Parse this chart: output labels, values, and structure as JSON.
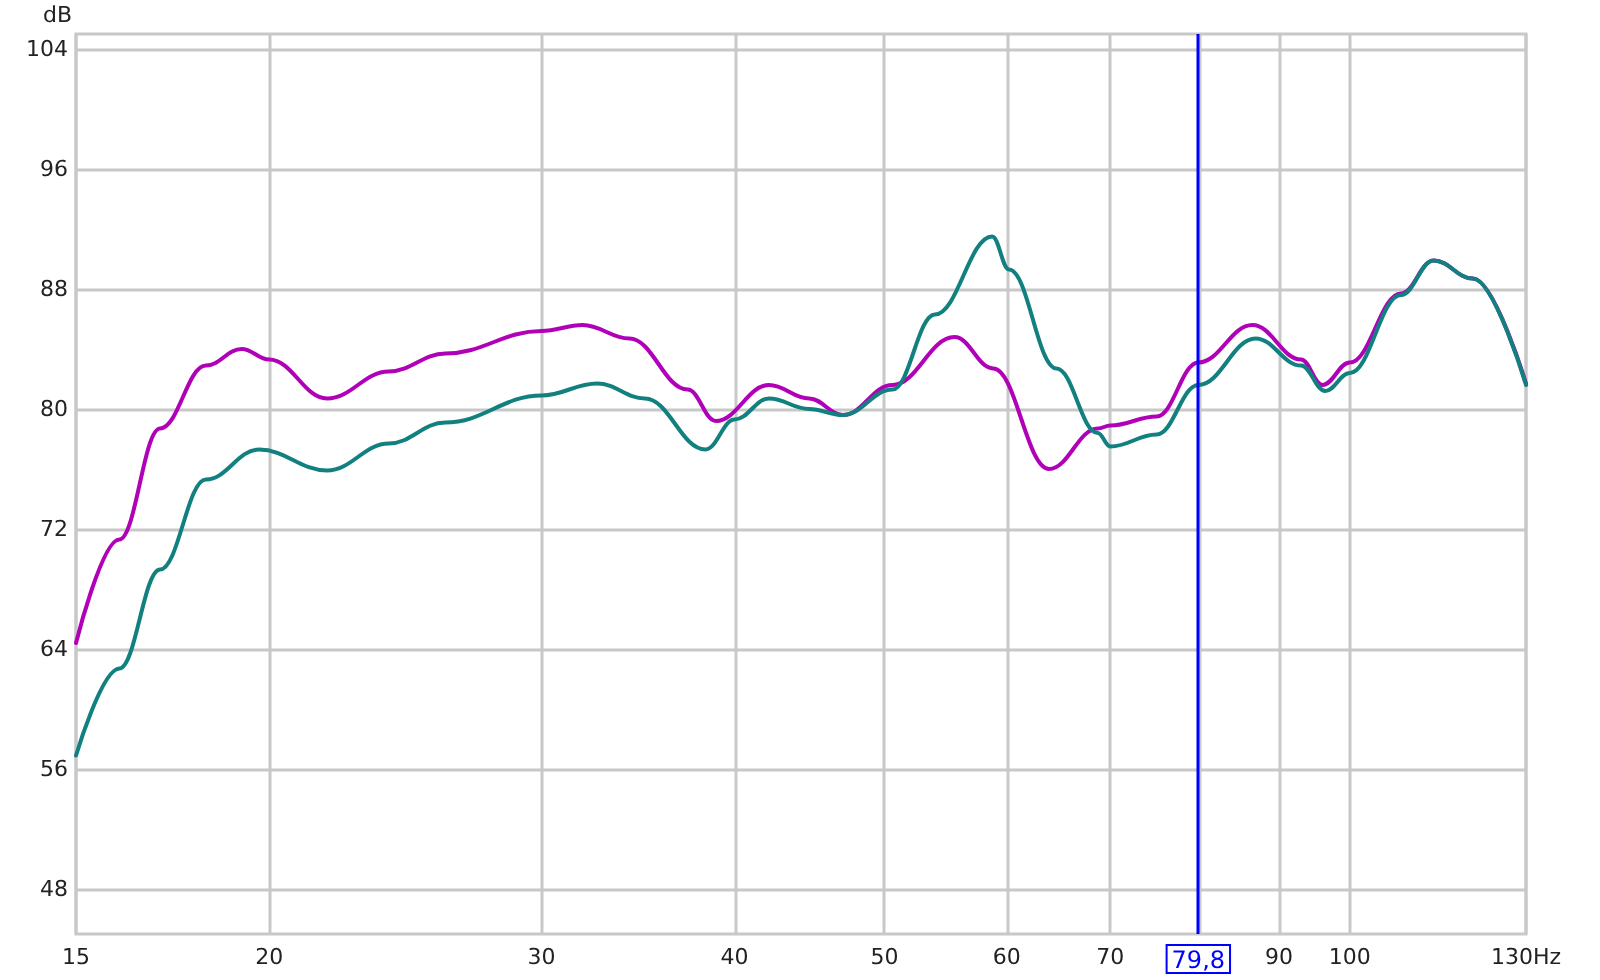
{
  "chart_data": {
    "type": "line",
    "ylabel": "dB",
    "log": "x",
    "xlim": [
      15,
      130
    ],
    "ylim": [
      45,
      105
    ],
    "xticks": [
      15,
      20,
      30,
      40,
      50,
      60,
      70,
      {
        "value": 80,
        "label": null
      },
      90,
      100,
      {
        "value": 130,
        "label": "130Hz"
      }
    ],
    "yticks": [
      48,
      56,
      64,
      72,
      80,
      88,
      96,
      104
    ],
    "grid": true,
    "legend": false,
    "marker": "none",
    "line_style": "solid",
    "ref_lines": [
      {
        "axis": "x",
        "value": 79.8,
        "label": "79,8",
        "color": "#0000ff"
      }
    ],
    "series": [
      {
        "color": "#b000b8",
        "x": [
          15,
          16.0,
          17.0,
          18.2,
          19.2,
          20,
          21.8,
          23.9,
          26.0,
          30,
          31.9,
          34.2,
          37.3,
          38.9,
          42.1,
          44.7,
          47.0,
          50.6,
          55.5,
          58.8,
          63.9,
          68.7,
          70,
          75,
          79.8,
          86.5,
          93.0,
          96.0,
          100,
          107.9,
          113.3,
          120.1,
          130
        ],
        "values": [
          64.4,
          71.3,
          78.7,
          82.9,
          84.0,
          83.3,
          80.7,
          82.5,
          83.7,
          85.2,
          85.6,
          84.7,
          81.3,
          79.2,
          81.6,
          80.7,
          79.6,
          81.6,
          84.8,
          82.7,
          76.0,
          78.7,
          78.9,
          79.5,
          83.1,
          85.6,
          83.3,
          81.6,
          83.1,
          87.7,
          89.9,
          88.7,
          81.7
        ]
      },
      {
        "color": "#138080",
        "x": [
          15,
          16.0,
          17.0,
          18.2,
          19.7,
          21.8,
          23.9,
          26.0,
          30,
          32.6,
          35.0,
          38.3,
          40,
          42.1,
          44.7,
          47.0,
          50.6,
          53.9,
          58.7,
          60.2,
          64.6,
          68.7,
          70,
          75,
          79.8,
          86.9,
          93.0,
          96.4,
          100,
          107.9,
          113.3,
          120.1,
          130
        ],
        "values": [
          56.9,
          62.7,
          69.3,
          75.3,
          77.3,
          75.9,
          77.7,
          79.1,
          80.9,
          81.7,
          80.7,
          77.3,
          79.3,
          80.7,
          80.0,
          79.6,
          81.3,
          86.3,
          91.5,
          89.3,
          82.7,
          78.4,
          77.5,
          78.3,
          81.6,
          84.7,
          82.9,
          81.2,
          82.4,
          87.6,
          89.9,
          88.7,
          81.6
        ]
      }
    ]
  }
}
